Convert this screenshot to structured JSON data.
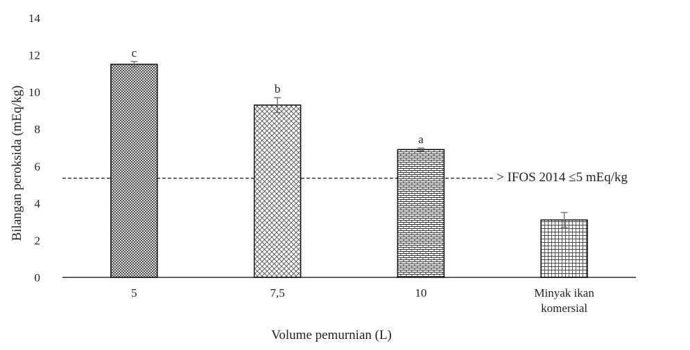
{
  "chart_data": {
    "type": "bar",
    "xlabel": "Volume pemurnian (L)",
    "ylabel": "Bilangan peroksida (mEq/kg)",
    "ylim": [
      0,
      14
    ],
    "yticks": [
      0,
      2,
      4,
      6,
      8,
      10,
      12,
      14
    ],
    "grid": false,
    "categories": [
      [
        "5"
      ],
      [
        "7,5"
      ],
      [
        "10"
      ],
      [
        "Minyak ikan",
        "komersial"
      ]
    ],
    "values": [
      11.5,
      9.3,
      6.9,
      3.1
    ],
    "errors": [
      0.15,
      0.4,
      0.08,
      0.4
    ],
    "significance_labels": [
      "c",
      "b",
      "a",
      ""
    ],
    "patterns": [
      "dense-crosshatch",
      "diagonal-crosshatch",
      "brick",
      "grid"
    ],
    "reference_line": {
      "value": 5.35,
      "style": "dashed",
      "label": "> IFOS 2014 ≤5 mEq/kg"
    },
    "colors": {
      "bar_stroke": "#000000",
      "pattern": "#333333",
      "error_bar": "#666666",
      "axis": "#000000"
    }
  }
}
